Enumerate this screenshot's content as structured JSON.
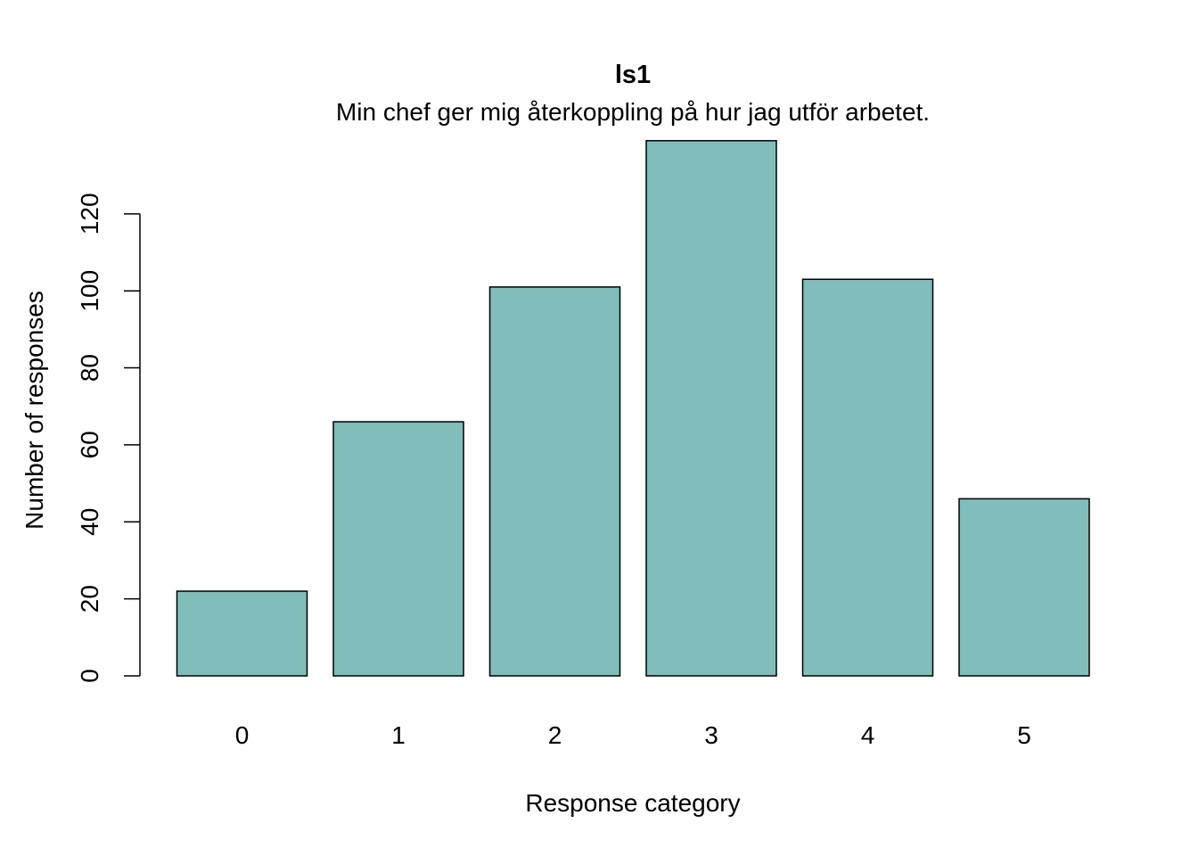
{
  "chart_data": {
    "type": "bar",
    "title": "ls1",
    "subtitle": "Min chef ger mig återkoppling på hur jag utför arbetet.",
    "xlabel": "Response category",
    "ylabel": "Number of responses",
    "categories": [
      "0",
      "1",
      "2",
      "3",
      "4",
      "5"
    ],
    "values": [
      22,
      66,
      101,
      139,
      103,
      46
    ],
    "ylim": [
      0,
      139
    ],
    "yticks": [
      0,
      20,
      40,
      60,
      80,
      100,
      120
    ],
    "bar_color": "#80BDBB",
    "bar_edge_color": "#000000",
    "grid": false,
    "legend": "none"
  }
}
